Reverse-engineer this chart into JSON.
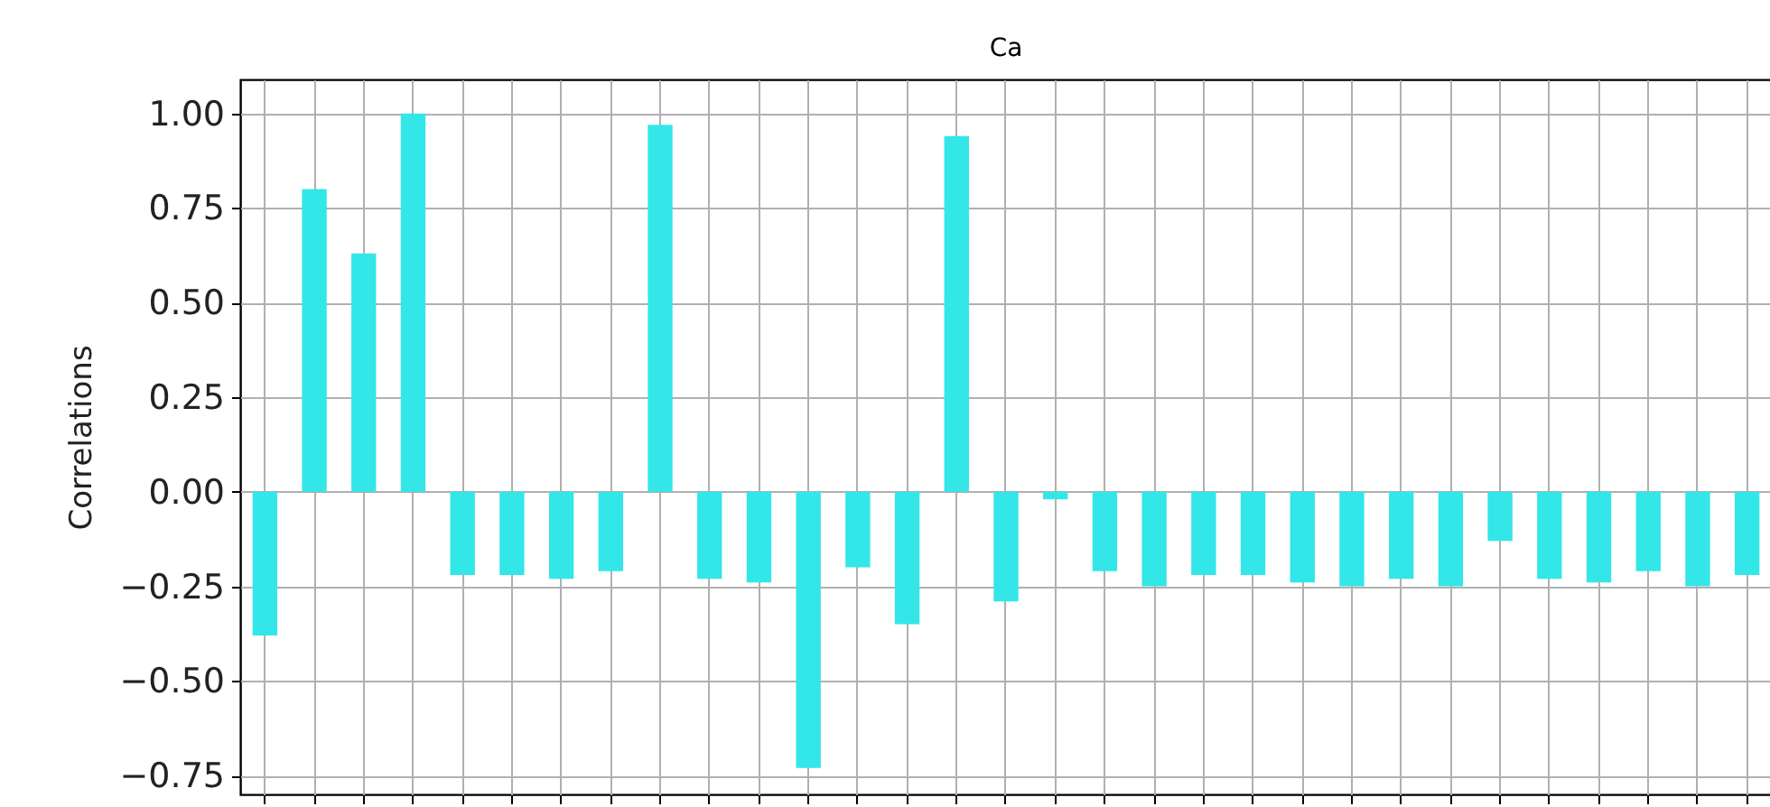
{
  "chart_data": {
    "type": "bar",
    "title": "Ca",
    "ylabel": "Correlations",
    "categories": [
      null,
      null,
      null,
      null,
      null,
      null,
      null,
      null,
      null,
      null,
      null,
      null,
      null,
      null,
      null,
      null,
      null,
      null,
      null,
      null,
      null,
      null,
      null,
      null,
      null,
      null,
      null,
      null,
      null,
      null,
      null
    ],
    "values": [
      -0.38,
      0.8,
      0.63,
      1.0,
      -0.22,
      -0.22,
      -0.23,
      -0.21,
      0.97,
      -0.23,
      -0.24,
      -0.73,
      -0.2,
      -0.35,
      0.94,
      -0.29,
      -0.02,
      -0.21,
      -0.25,
      -0.22,
      -0.22,
      -0.24,
      -0.25,
      -0.23,
      -0.25,
      -0.13,
      -0.23,
      -0.24,
      -0.21,
      -0.25,
      -0.22
    ],
    "color": "#33e6e8",
    "ylim": [
      -0.8,
      1.09
    ],
    "yticks": [
      {
        "value": -0.75,
        "label": "−0.75"
      },
      {
        "value": -0.5,
        "label": "−0.50"
      },
      {
        "value": -0.25,
        "label": "−0.25"
      },
      {
        "value": 0,
        "label": "0.00"
      },
      {
        "value": 0.25,
        "label": "0.25"
      },
      {
        "value": 0.5,
        "label": "0.50"
      },
      {
        "value": 0.75,
        "label": "0.75"
      },
      {
        "value": 1,
        "label": "1.00"
      }
    ],
    "grid": true,
    "tick_labels": "y"
  }
}
